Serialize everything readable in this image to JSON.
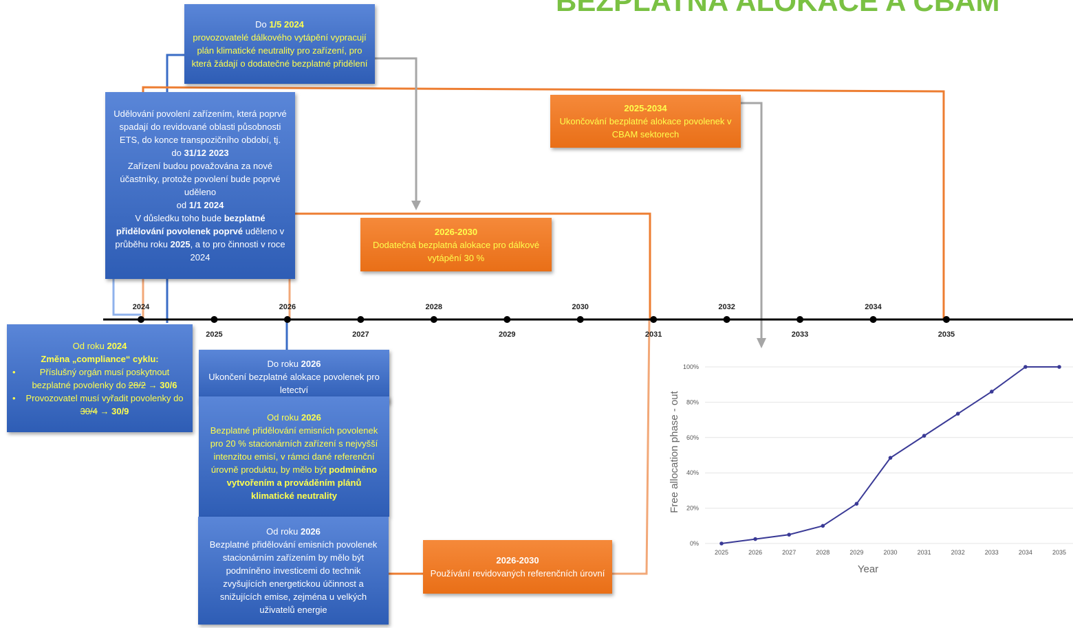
{
  "title": "BEZPLATNÁ ALOKACE A CBAM",
  "timeline": {
    "years": [
      "2024",
      "2025",
      "2026",
      "2027",
      "2028",
      "2029",
      "2030",
      "2031",
      "2032",
      "2033",
      "2034",
      "2035"
    ]
  },
  "boxes": [
    {
      "kind": "blue",
      "paras": [
        {
          "runs": [
            {
              "text": "Do ",
              "color": "white"
            },
            {
              "text": "1/5 2024",
              "bold": true,
              "color": "yellow"
            }
          ]
        },
        {
          "runs": [
            {
              "text": "provozovatelé dálkového vytápění vypracují plán klimatické neutrality pro zařízení, pro která žádají o dodatečné bezplatné přidělení",
              "color": "yellow"
            }
          ]
        }
      ]
    },
    {
      "kind": "blue",
      "paras": [
        {
          "runs": [
            {
              "text": "Udělování povolení zařízením, která poprvé spadají do revidované oblasti působnosti ETS, do konce transpozičního období, tj.",
              "color": "white"
            }
          ]
        },
        {
          "runs": [
            {
              "text": "do ",
              "color": "white"
            },
            {
              "text": "31/12 2023",
              "bold": true,
              "color": "white"
            }
          ]
        },
        {
          "runs": [
            {
              "text": "Zařízení budou považována za nové účastníky, protože povolení bude poprvé uděleno",
              "color": "white"
            }
          ]
        },
        {
          "runs": [
            {
              "text": "od ",
              "color": "white"
            },
            {
              "text": "1/1 2024",
              "bold": true,
              "color": "white"
            }
          ]
        },
        {
          "runs": [
            {
              "text": "V důsledku toho bude ",
              "color": "white"
            },
            {
              "text": "bezplatné přidělování povolenek poprvé",
              "bold": true,
              "color": "white"
            },
            {
              "text": " uděleno v průběhu roku ",
              "color": "white"
            },
            {
              "text": "2025",
              "bold": true,
              "color": "white"
            },
            {
              "text": ", a to pro činnosti v roce 2024",
              "color": "white"
            }
          ]
        }
      ]
    },
    {
      "kind": "orange",
      "paras": [
        {
          "runs": [
            {
              "text": "2025-2034",
              "bold": true,
              "color": "yellow"
            }
          ]
        },
        {
          "runs": [
            {
              "text": "Ukončování bezplatné alokace povolenek v CBAM sektorech",
              "color": "yellow"
            }
          ]
        }
      ]
    },
    {
      "kind": "orange",
      "paras": [
        {
          "runs": [
            {
              "text": "2026-2030",
              "bold": true,
              "color": "yellow"
            }
          ]
        },
        {
          "runs": [
            {
              "text": "Dodatečná bezplatná alokace pro dálkové vytápění 30 %",
              "color": "yellow"
            }
          ]
        }
      ]
    },
    {
      "kind": "blue",
      "paras": [
        {
          "runs": [
            {
              "text": "Od roku ",
              "color": "yellow"
            },
            {
              "text": "2024",
              "bold": true,
              "color": "yellow"
            }
          ]
        },
        {
          "runs": [
            {
              "text": "Změna „compliance“ cyklu:",
              "bold": true,
              "color": "yellow"
            }
          ]
        },
        {
          "bullet": true,
          "runs": [
            {
              "text": "Příslušný orgán musí poskytnout bezplatné povolenky do ",
              "color": "yellow"
            },
            {
              "text": "28/2",
              "strike": true,
              "color": "yellow"
            },
            {
              "text": " → ",
              "color": "yellow"
            },
            {
              "text": "30/6",
              "bold": true,
              "color": "yellow"
            }
          ]
        },
        {
          "bullet": true,
          "runs": [
            {
              "text": "Provozovatel musí vyřadit povolenky do ",
              "color": "yellow"
            },
            {
              "text": "30/4",
              "strike": true,
              "color": "yellow"
            },
            {
              "text": " → ",
              "color": "yellow"
            },
            {
              "text": "30/9",
              "bold": true,
              "color": "yellow"
            }
          ]
        }
      ]
    },
    {
      "kind": "blue",
      "paras": [
        {
          "runs": [
            {
              "text": "Do roku ",
              "color": "white"
            },
            {
              "text": "2026",
              "bold": true,
              "color": "white"
            }
          ]
        },
        {
          "runs": [
            {
              "text": "Ukončení bezplatné alokace povolenek pro letectví",
              "color": "white"
            }
          ]
        }
      ]
    },
    {
      "kind": "blue",
      "paras": [
        {
          "runs": [
            {
              "text": "Od roku ",
              "color": "yellow"
            },
            {
              "text": "2026",
              "bold": true,
              "color": "yellow"
            }
          ]
        },
        {
          "runs": [
            {
              "text": "Bezplatné přidělování emisních povolenek pro 20 % stacionárních zařízení s nejvyšší intenzitou emisí, v rámci dané referenční úrovně produktu, by mělo být ",
              "color": "yellow"
            },
            {
              "text": "podmíněno vytvořením a prováděním plánů klimatické neutrality",
              "bold": true,
              "color": "yellow"
            }
          ]
        }
      ]
    },
    {
      "kind": "blue",
      "paras": [
        {
          "runs": [
            {
              "text": "Od roku ",
              "color": "white"
            },
            {
              "text": "2026",
              "bold": true,
              "color": "white"
            }
          ]
        },
        {
          "runs": [
            {
              "text": "Bezplatné přidělování emisních povolenek stacionárním zařízením by mělo být podmíněno investicemi do technik zvyšujících energetickou účinnost a snižujících emise, zejména u velkých uživatelů energie",
              "color": "white"
            }
          ]
        }
      ]
    },
    {
      "kind": "orange",
      "paras": [
        {
          "runs": [
            {
              "text": "2026-2030",
              "bold": true,
              "color": "white"
            }
          ]
        },
        {
          "runs": [
            {
              "text": "Používání revidovaných referenčních úrovní",
              "color": "white"
            }
          ]
        }
      ]
    }
  ],
  "chart_data": {
    "type": "line",
    "x_label": "Year",
    "y_label": "Free allocation phase - out",
    "categories": [
      "2025",
      "2026",
      "2027",
      "2028",
      "2029",
      "2030",
      "2031",
      "2032",
      "2033",
      "2034",
      "2035"
    ],
    "series": [
      {
        "name": "Free allocation phase - out",
        "color": "#3a3a96",
        "values": [
          0,
          2.5,
          5,
          10,
          22.5,
          48.5,
          61,
          73.5,
          86,
          100,
          100
        ]
      }
    ],
    "ylim": [
      0,
      100
    ],
    "yticks": [
      {
        "value": 0,
        "label": "0%"
      },
      {
        "value": 20,
        "label": "20%"
      },
      {
        "value": 40,
        "label": "40%"
      },
      {
        "value": 60,
        "label": "60%"
      },
      {
        "value": 80,
        "label": "80%"
      },
      {
        "value": 100,
        "label": "100%"
      }
    ],
    "grid": true
  }
}
